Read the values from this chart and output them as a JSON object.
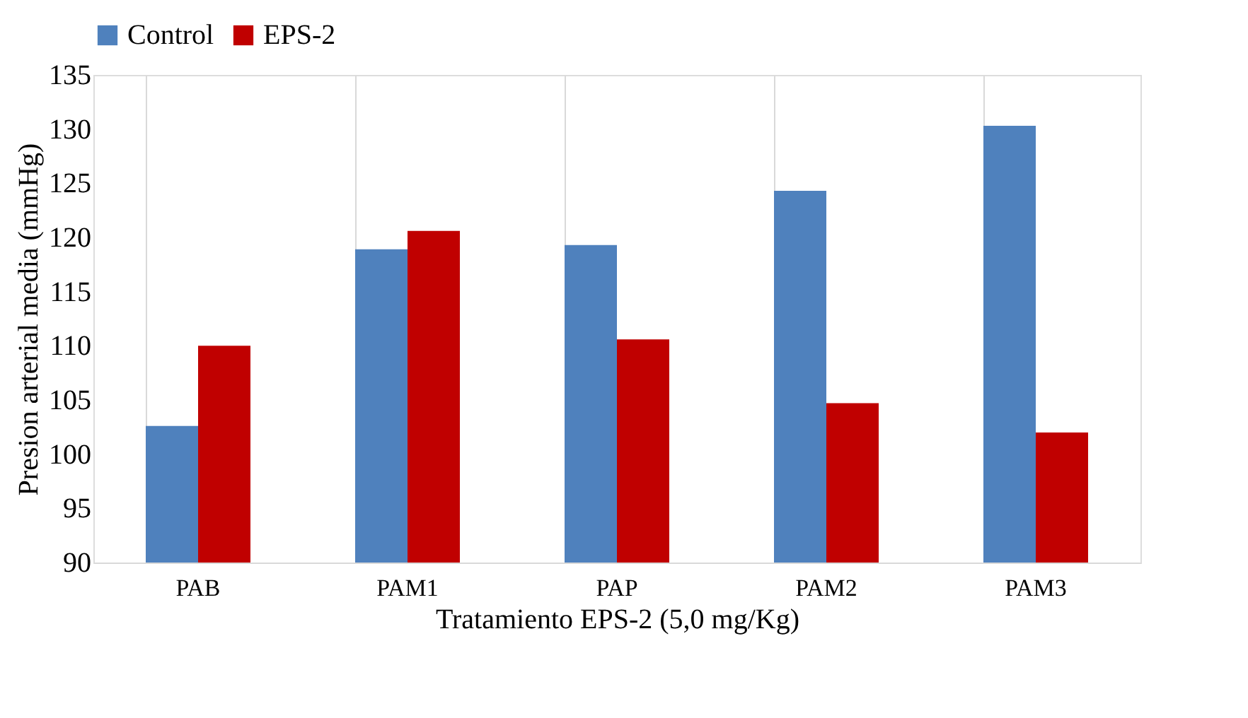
{
  "chart_data": {
    "type": "bar",
    "xlabel": "Tratamiento EPS-2 (5,0 mg/Kg)",
    "ylabel": "Presion arterial media (mmHg)",
    "categories": [
      "PAB",
      "PAM1",
      "PAP",
      "PAM2",
      "PAM3"
    ],
    "series": [
      {
        "name": "Control",
        "color": "#4f81bd",
        "values": [
          102.6,
          118.9,
          119.3,
          124.3,
          130.3
        ]
      },
      {
        "name": "EPS-2",
        "color": "#c00000",
        "values": [
          110.0,
          120.6,
          110.6,
          104.7,
          102.0
        ]
      }
    ],
    "ylim": [
      90,
      135
    ],
    "yticks": [
      90,
      95,
      100,
      105,
      110,
      115,
      120,
      125,
      130,
      135
    ],
    "grid": "x",
    "legend": "top"
  }
}
